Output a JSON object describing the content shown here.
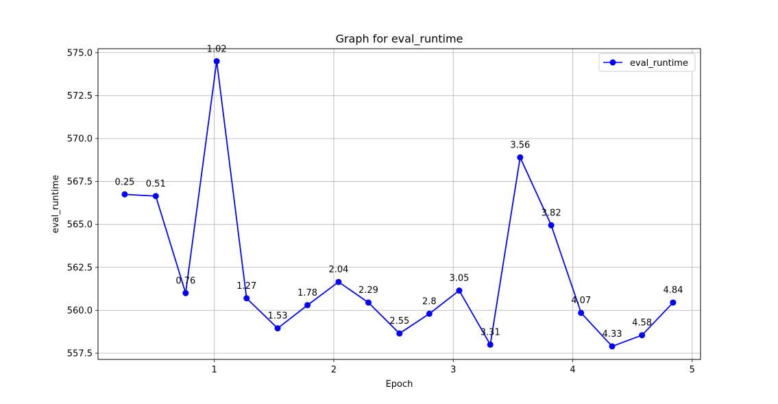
{
  "chart_data": {
    "type": "line",
    "title": "Graph for eval_runtime",
    "xlabel": "Epoch",
    "ylabel": "eval_runtime",
    "xlim": [
      0.0265,
      5.07
    ],
    "ylim": [
      557.14,
      575.23
    ],
    "grid": true,
    "legend_position": "top-right",
    "xticks": [
      1,
      2,
      3,
      4,
      5
    ],
    "yticks": [
      557.5,
      560.0,
      562.5,
      565.0,
      567.5,
      570.0,
      572.5,
      575.0
    ],
    "ytick_labels": [
      "557.5",
      "560.0",
      "562.5",
      "565.0",
      "567.5",
      "570.0",
      "572.5",
      "575.0"
    ],
    "series": [
      {
        "name": "eval_runtime",
        "color": "#0000ff",
        "marker": "circle",
        "x": [
          0.25,
          0.51,
          0.76,
          1.02,
          1.27,
          1.53,
          1.78,
          2.04,
          2.29,
          2.55,
          2.8,
          3.05,
          3.31,
          3.56,
          3.82,
          4.07,
          4.33,
          4.58,
          4.84
        ],
        "y": [
          566.75,
          566.65,
          561.0,
          574.5,
          560.7,
          558.95,
          560.3,
          561.65,
          560.45,
          558.65,
          559.8,
          561.15,
          558.0,
          568.9,
          564.95,
          559.85,
          557.9,
          558.55,
          560.45
        ],
        "point_labels": [
          "0.25",
          "0.51",
          "0.76",
          "1.02",
          "1.27",
          "1.53",
          "1.78",
          "2.04",
          "2.29",
          "2.55",
          "2.8",
          "3.05",
          "3.31",
          "3.56",
          "3.82",
          "4.07",
          "4.33",
          "4.58",
          "4.84"
        ]
      }
    ]
  }
}
